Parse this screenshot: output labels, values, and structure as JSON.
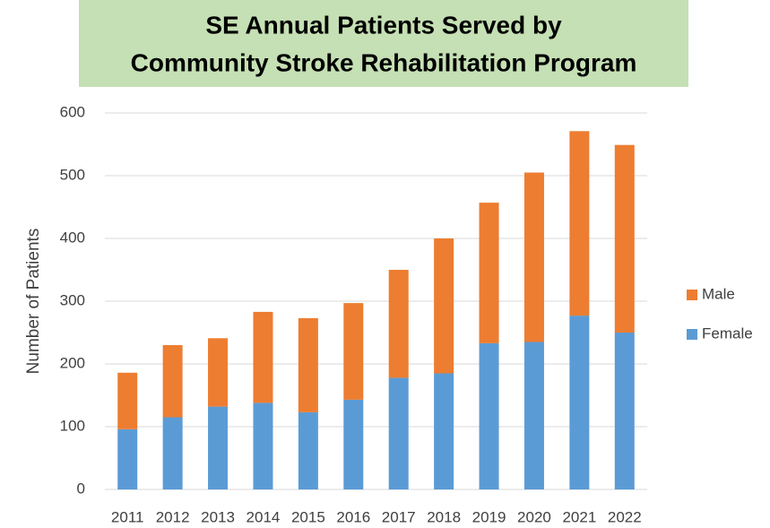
{
  "chart_data": {
    "type": "stacked_bar",
    "title": [
      "SE Annual Patients Served by",
      "Community Stroke Rehabilitation Program"
    ],
    "y_label": "Number of Patients",
    "categories": [
      "2011",
      "2012",
      "2013",
      "2014",
      "2015",
      "2016",
      "2017",
      "2018",
      "2019",
      "2020",
      "2021",
      "2022"
    ],
    "series": [
      {
        "name": "Female",
        "color": "#5b9bd5",
        "values": [
          96,
          115,
          132,
          138,
          123,
          143,
          178,
          185,
          233,
          235,
          277,
          250
        ]
      },
      {
        "name": "Male",
        "color": "#ed7d31",
        "values": [
          90,
          115,
          109,
          145,
          150,
          154,
          172,
          215,
          224,
          270,
          294,
          299
        ]
      }
    ],
    "ylim": [
      0,
      600
    ],
    "yticks": [
      0,
      100,
      200,
      300,
      400,
      500,
      600
    ],
    "grid": true,
    "legend": "right"
  }
}
